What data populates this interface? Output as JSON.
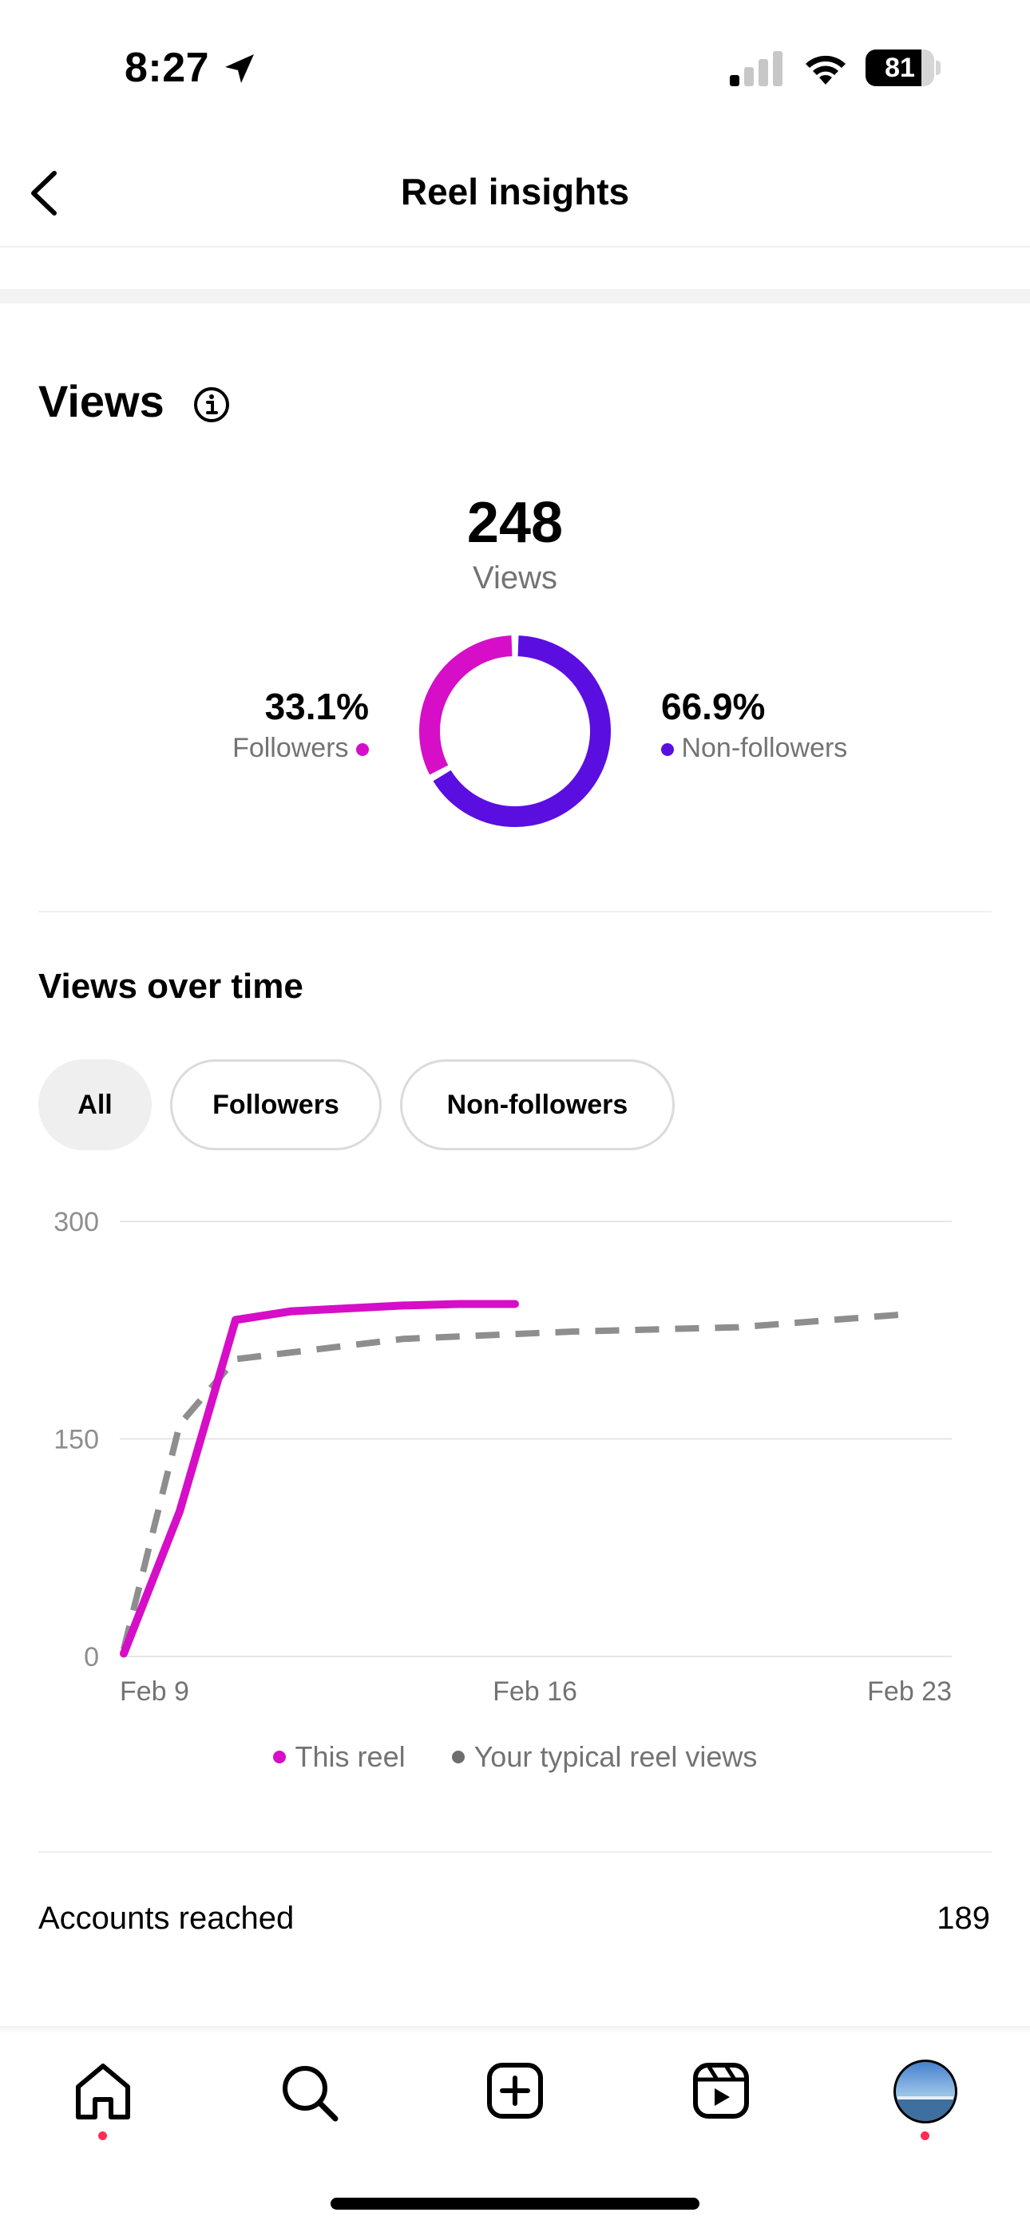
{
  "status_bar": {
    "time": "8:27",
    "battery": "81"
  },
  "header": {
    "title": "Reel insights"
  },
  "views": {
    "title": "Views",
    "total": "248",
    "total_label": "Views",
    "followers_pct": "33.1%",
    "followers_label": "Followers",
    "nonfollowers_pct": "66.9%",
    "nonfollowers_label": "Non-followers",
    "followers_fraction": 0.331
  },
  "views_over_time": {
    "title": "Views over time",
    "chips": [
      "All",
      "Followers",
      "Non-followers"
    ],
    "selected_chip": "All"
  },
  "chart_data": {
    "type": "line",
    "x_ticks": [
      "Feb 9",
      "Feb 16",
      "Feb 23"
    ],
    "y_ticks": [
      "300",
      "150",
      "0"
    ],
    "ylim": [
      0,
      300
    ],
    "xlim": [
      0,
      14
    ],
    "grid": true,
    "legend_position": "bottom",
    "series": [
      {
        "name": "This reel",
        "color": "#d60ec8",
        "style": "solid",
        "points": [
          [
            0,
            2
          ],
          [
            1,
            100
          ],
          [
            2,
            232
          ],
          [
            3,
            238
          ],
          [
            5,
            242
          ],
          [
            6,
            243
          ],
          [
            7,
            243
          ]
        ]
      },
      {
        "name": "Your typical reel views",
        "color": "#8e8e8e",
        "style": "dashed",
        "points": [
          [
            0,
            5
          ],
          [
            1,
            160
          ],
          [
            2,
            205
          ],
          [
            5,
            219
          ],
          [
            8,
            224
          ],
          [
            11,
            227
          ],
          [
            14,
            236
          ]
        ]
      }
    ]
  },
  "accounts_reached": {
    "label": "Accounts reached",
    "value": "189"
  },
  "colors": {
    "followers": "#d60ec8",
    "nonfollowers": "#5b0ee0",
    "notification_dot": "#ff2d55"
  },
  "nav": [
    "home-icon",
    "search-icon",
    "create-icon",
    "reels-icon",
    "profile-avatar"
  ]
}
